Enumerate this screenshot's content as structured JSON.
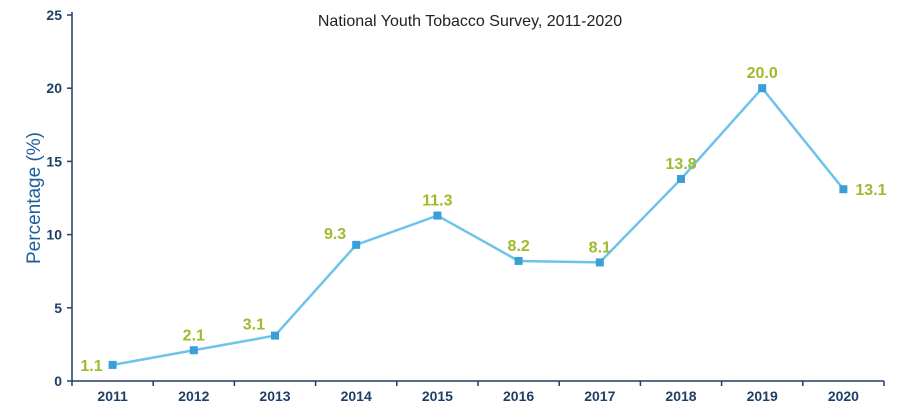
{
  "chart_data": {
    "type": "line",
    "title": "",
    "subtitle": "National Youth Tobacco Survey, 2011-2020",
    "xlabel": "",
    "ylabel": "Percentage (%)",
    "ylim": [
      0,
      25
    ],
    "yticks": [
      0,
      5,
      10,
      15,
      20,
      25
    ],
    "categories": [
      "2011",
      "2012",
      "2013",
      "2014",
      "2015",
      "2016",
      "2017",
      "2018",
      "2019",
      "2020"
    ],
    "series": [
      {
        "values": [
          1.1,
          2.1,
          3.1,
          9.3,
          11.3,
          8.2,
          8.1,
          13.8,
          20.0,
          13.1
        ],
        "labels": [
          "1.1",
          "2.1",
          "3.1",
          "9.3",
          "11.3",
          "8.2",
          "8.1",
          "13.8",
          "20.0",
          "13.1"
        ]
      }
    ],
    "grid": false,
    "colors": {
      "line": "#6ec3ea",
      "marker": "#3a9fd6",
      "data_label": "#9dbb2a",
      "axis": "#1f3f66",
      "ylabel": "#1f5f9e"
    }
  }
}
